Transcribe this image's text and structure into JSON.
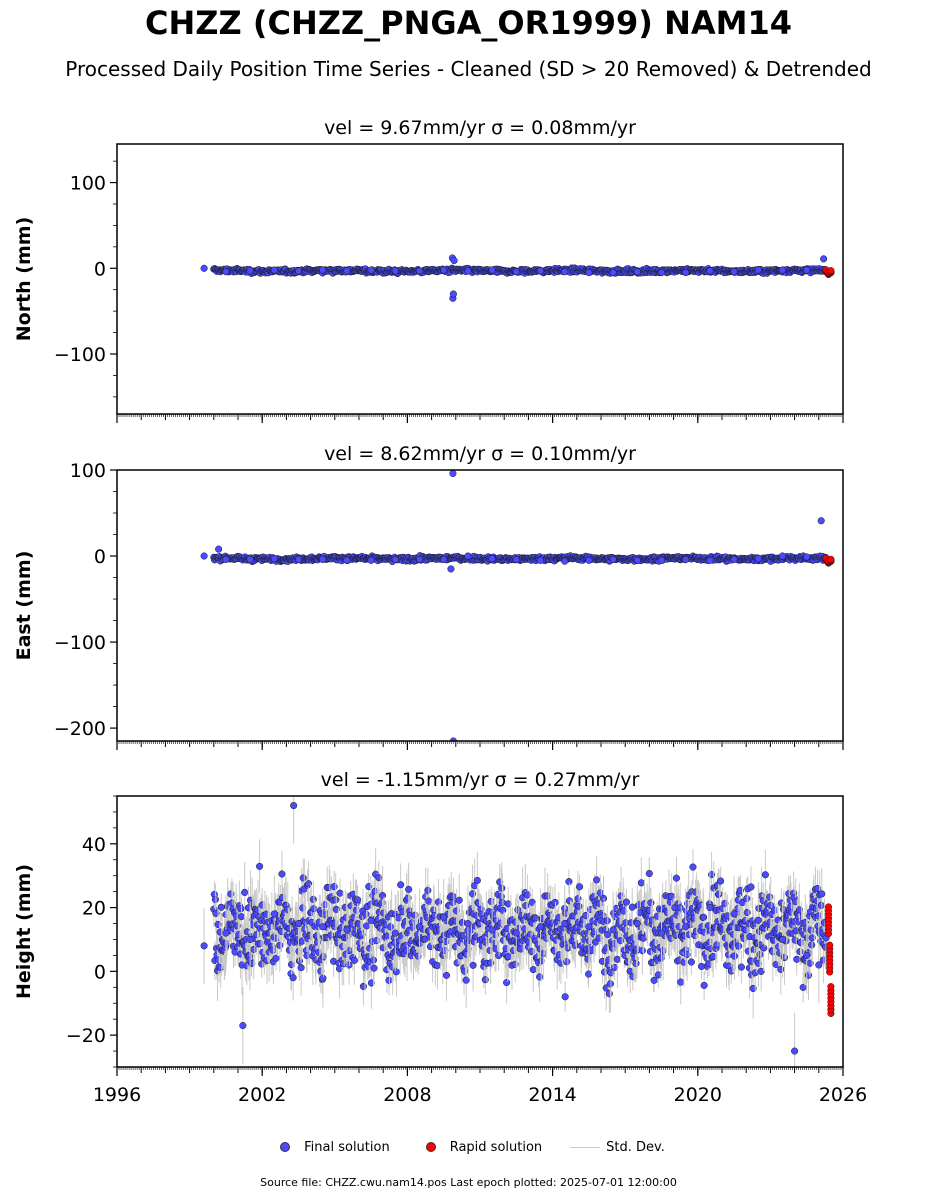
{
  "title": "CHZZ (CHZZ_PNGA_OR1999) NAM14",
  "subtitle": "Processed Daily Position Time Series - Cleaned (SD > 20 Removed) & Detrended",
  "legend": {
    "final": "Final solution",
    "rapid": "Rapid solution",
    "std": "Std. Dev."
  },
  "footer": "Source file: CHZZ.cwu.nam14.pos  Last epoch plotted: 2025-07-01 12:00:00",
  "colors": {
    "final": "#4a4aff",
    "rapid": "#ff0000",
    "std": "#c8c8c8",
    "marker_edge": "#1a1a1a"
  },
  "chart_data": [
    {
      "type": "scatter",
      "title": "vel = 9.67mm/yr   σ = 0.08mm/yr",
      "ylabel": "North (mm)",
      "xlim": [
        1996,
        2026
      ],
      "ylim": [
        -170,
        145
      ],
      "yticks": [
        -100,
        0,
        100
      ],
      "ytick_labels": [
        "−100",
        "0",
        "100"
      ],
      "xticks": [
        1996,
        2002,
        2008,
        2014,
        2020,
        2026
      ],
      "xtick_labels": [
        "",
        "",
        "",
        "",
        "",
        ""
      ],
      "series": [
        {
          "name": "Final solution",
          "x": [
            1999.6,
            2000.5,
            2001.5,
            2002.5,
            2003.5,
            2004.5,
            2005.5,
            2006.5,
            2007.5,
            2008.5,
            2009.5,
            2009.86,
            2009.88,
            2009.9,
            2009.93,
            2010.5,
            2011.5,
            2012.5,
            2013.5,
            2014.5,
            2015.5,
            2016.5,
            2017.5,
            2018.5,
            2019.5,
            2020.5,
            2021.5,
            2022.5,
            2023.5,
            2024.5,
            2025.2
          ],
          "y": [
            0,
            -4,
            -3,
            -2,
            -3,
            -2,
            -3,
            -2,
            -3,
            -3,
            -2,
            12,
            -35,
            -30,
            9,
            -3,
            -2,
            -4,
            -3,
            -4,
            -5,
            -5,
            -4,
            -5,
            -5,
            -3,
            -4,
            -2,
            -2,
            -2,
            11
          ]
        },
        {
          "name": "Rapid solution",
          "x": [
            2025.3,
            2025.4,
            2025.5
          ],
          "y": [
            -3,
            -6,
            -4
          ]
        }
      ]
    },
    {
      "type": "scatter",
      "title": "vel = 8.62mm/yr   σ = 0.10mm/yr",
      "ylabel": "East (mm)",
      "xlim": [
        1996,
        2026
      ],
      "ylim": [
        -215,
        100
      ],
      "yticks": [
        -200,
        -100,
        0,
        100
      ],
      "ytick_labels": [
        "−200",
        "−100",
        "0",
        "100"
      ],
      "xticks": [
        1996,
        2002,
        2008,
        2014,
        2020,
        2026
      ],
      "xtick_labels": [
        "",
        "",
        "",
        "",
        "",
        ""
      ],
      "series": [
        {
          "name": "Final solution",
          "x": [
            1999.6,
            2000.2,
            2000.5,
            2001.5,
            2002.5,
            2003.5,
            2004.5,
            2005.5,
            2006.5,
            2007.5,
            2008.5,
            2009.5,
            2009.8,
            2009.88,
            2009.9,
            2010.5,
            2011.5,
            2012.5,
            2013.5,
            2014.5,
            2015.5,
            2016.5,
            2017.5,
            2018.5,
            2019.5,
            2020.5,
            2021.5,
            2022.5,
            2023.5,
            2024.5,
            2025.1
          ],
          "y": [
            0,
            8,
            -4,
            -4,
            -3,
            -4,
            -4,
            -5,
            -5,
            -4,
            -4,
            -4,
            -15,
            96,
            -215,
            0,
            -3,
            -4,
            -5,
            -6,
            -5,
            -4,
            -5,
            -5,
            -4,
            -5,
            -4,
            -3,
            0,
            -1,
            41
          ]
        },
        {
          "name": "Rapid solution",
          "x": [
            2025.3,
            2025.4,
            2025.5
          ],
          "y": [
            -4,
            -7,
            -5
          ]
        }
      ]
    },
    {
      "type": "scatter",
      "title": "vel = -1.15mm/yr   σ = 0.27mm/yr",
      "ylabel": "Height (mm)",
      "xlim": [
        1996,
        2026
      ],
      "ylim": [
        -30,
        55
      ],
      "yticks": [
        -20,
        0,
        20,
        40
      ],
      "ytick_labels": [
        "−20",
        "0",
        "20",
        "40"
      ],
      "xticks": [
        1996,
        2002,
        2008,
        2014,
        2020,
        2026
      ],
      "xtick_labels": [
        "1996",
        "2002",
        "2008",
        "2014",
        "2020",
        "2026"
      ],
      "series": [
        {
          "name": "Final solution",
          "x": [
            1999.6,
            2000.5,
            2001.2,
            2001.5,
            2002.5,
            2003.3,
            2003.5,
            2004.5,
            2005.5,
            2006.5,
            2007.5,
            2008.5,
            2009.5,
            2010.5,
            2011.5,
            2012.5,
            2013.5,
            2014.5,
            2015.5,
            2016.5,
            2017.5,
            2018.5,
            2019.5,
            2020.5,
            2021.5,
            2022.5,
            2023.5,
            2024.0,
            2024.5,
            2025.0
          ],
          "y": [
            8,
            12,
            -17,
            10,
            18,
            52,
            15,
            14,
            13,
            16,
            12,
            14,
            17,
            15,
            13,
            12,
            14,
            15,
            14,
            13,
            15,
            12,
            14,
            20,
            18,
            16,
            10,
            -25,
            5,
            2
          ]
        },
        {
          "name": "Rapid solution",
          "x": [
            2025.4,
            2025.45,
            2025.5
          ],
          "y": [
            16,
            4,
            -9
          ]
        }
      ]
    }
  ]
}
